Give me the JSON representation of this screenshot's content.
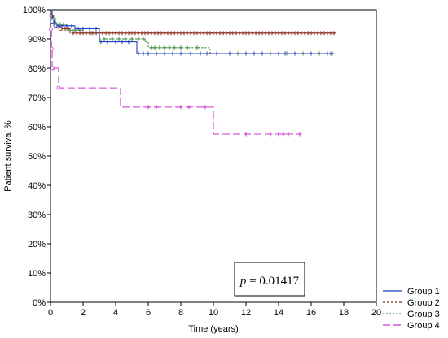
{
  "chart_data": {
    "type": "line",
    "subtype": "kaplan-meier step",
    "xlabel": "Time (years)",
    "ylabel": "Patient survival %",
    "xlim": [
      0,
      20
    ],
    "ylim": [
      0,
      100
    ],
    "xticks": [
      0,
      2,
      4,
      6,
      8,
      10,
      12,
      14,
      16,
      18,
      20
    ],
    "yticks": [
      0,
      10,
      20,
      30,
      40,
      50,
      60,
      70,
      80,
      90,
      100
    ],
    "ytick_suffix": "%",
    "grid": false,
    "legend_position": "bottom-right",
    "annotation": {
      "prefix": "p",
      "text": " = 0.01417"
    },
    "series": [
      {
        "name": "Group 1",
        "color": "#2040c0",
        "dash": "",
        "steps": [
          [
            0,
            100
          ],
          [
            0.1,
            96
          ],
          [
            0.3,
            94.5
          ],
          [
            1.5,
            93.5
          ],
          [
            3,
            89
          ],
          [
            5.3,
            85
          ],
          [
            17.3,
            85
          ]
        ],
        "censors": [
          0.1,
          0.2,
          0.4,
          0.7,
          1.0,
          1.3,
          1.7,
          2.0,
          2.4,
          2.8,
          3.1,
          3.5,
          4.0,
          4.4,
          4.8,
          5.4,
          5.7,
          6.0,
          6.5,
          7.0,
          7.5,
          8.0,
          8.6,
          9.2,
          9.6,
          10.2,
          11.0,
          12.0,
          12.5,
          13.0,
          14.0,
          14.4,
          15.0,
          16.0,
          17.2
        ]
      },
      {
        "name": "Group 2",
        "color": "#8b2a1a",
        "dash": "3,2",
        "steps": [
          [
            0,
            100
          ],
          [
            0.05,
            98
          ],
          [
            0.15,
            96
          ],
          [
            0.3,
            94.5
          ],
          [
            0.6,
            93.5
          ],
          [
            1.2,
            92
          ],
          [
            17.5,
            92
          ]
        ],
        "censors": [
          0.1,
          0.2,
          0.3,
          0.5,
          0.7,
          0.9,
          1.1,
          1.4,
          1.6,
          1.8,
          2.0,
          2.2,
          2.4,
          2.6,
          2.8,
          3.0,
          3.2,
          3.4,
          3.6,
          3.8,
          4.0,
          4.2,
          4.4,
          4.6,
          4.8,
          5.0,
          5.2,
          5.4,
          5.6,
          5.8,
          6.0,
          6.2,
          6.4,
          6.6,
          6.8,
          7.0,
          7.2,
          7.4,
          7.6,
          7.8,
          8.0,
          8.2,
          8.4,
          8.6,
          8.8,
          9.0,
          9.2,
          9.4,
          9.6,
          9.8,
          10.0,
          10.2,
          10.4,
          10.6,
          10.8,
          11.0,
          11.2,
          11.4,
          11.6,
          11.8,
          12.0,
          12.2,
          12.4,
          12.6,
          12.8,
          13.0,
          13.2,
          13.4,
          13.6,
          13.8,
          14.0,
          14.2,
          14.4,
          14.6,
          14.8,
          15.0,
          15.2,
          15.4,
          15.6,
          15.8,
          16.0,
          16.2,
          16.4,
          16.6,
          16.8,
          17.0,
          17.2,
          17.4
        ]
      },
      {
        "name": "Group 3",
        "color": "#3a8a3a",
        "dash": "2,2",
        "steps": [
          [
            0,
            100
          ],
          [
            0.1,
            97
          ],
          [
            0.3,
            95
          ],
          [
            1.0,
            93
          ],
          [
            2.0,
            92
          ],
          [
            3.0,
            90
          ],
          [
            5.8,
            89
          ],
          [
            6.0,
            87
          ],
          [
            9.8,
            85
          ],
          [
            17.3,
            85
          ]
        ],
        "censors": [
          0.2,
          0.4,
          0.6,
          0.8,
          1.2,
          1.5,
          1.8,
          2.2,
          2.5,
          2.8,
          3.3,
          3.8,
          4.2,
          4.6,
          5.0,
          5.4,
          5.7,
          6.2,
          6.4,
          6.7,
          7.0,
          7.3,
          7.6,
          8.0,
          8.4,
          9.0,
          10.2,
          11.0,
          11.5,
          12.0,
          12.5,
          13.0,
          13.5,
          14.0,
          14.5,
          15.0,
          15.5,
          16.0,
          16.5,
          17.0,
          17.3
        ]
      },
      {
        "name": "Group 4",
        "color": "#cc33cc",
        "dash": "9,4",
        "steps": [
          [
            0,
            100
          ],
          [
            0.03,
            93.3
          ],
          [
            0.06,
            86.7
          ],
          [
            0.1,
            80
          ],
          [
            0.5,
            73.3
          ],
          [
            4.3,
            66.7
          ],
          [
            10,
            57.5
          ],
          [
            15.4,
            57.5
          ]
        ],
        "censors": [
          0.2,
          6.0,
          6.5,
          8.0,
          8.5,
          9.5,
          12.0,
          13.5,
          14.0,
          14.3,
          14.6,
          15.3
        ]
      }
    ]
  }
}
